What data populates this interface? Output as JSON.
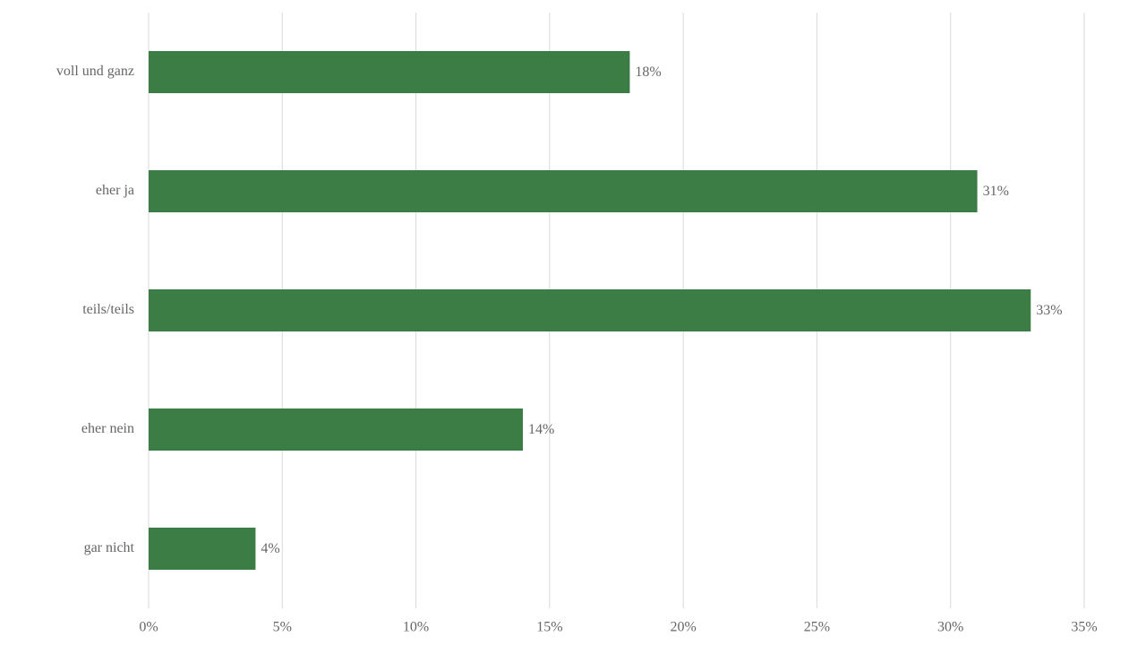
{
  "chart_data": {
    "type": "hbar",
    "categories": [
      "voll und ganz",
      "eher ja",
      "teils/teils",
      "eher nein",
      "gar nicht"
    ],
    "values": [
      18,
      31,
      33,
      14,
      4
    ],
    "value_labels": [
      "18%",
      "31%",
      "33%",
      "14%",
      "4%"
    ],
    "color": "#3b7d44",
    "xlim": [
      0,
      35
    ],
    "xticks": [
      {
        "value": 0,
        "label": "0%"
      },
      {
        "value": 5,
        "label": "5%"
      },
      {
        "value": 10,
        "label": "10%"
      },
      {
        "value": 15,
        "label": "15%"
      },
      {
        "value": 20,
        "label": "20%"
      },
      {
        "value": 25,
        "label": "25%"
      },
      {
        "value": 30,
        "label": "30%"
      },
      {
        "value": 35,
        "label": "35%"
      }
    ],
    "grid": true
  }
}
